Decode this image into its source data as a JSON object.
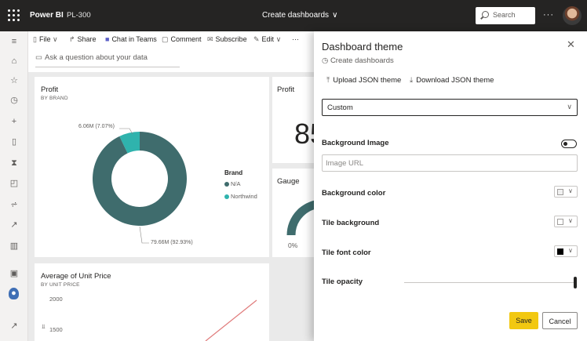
{
  "topbar": {
    "app": "Power BI",
    "workspace": "PL-300",
    "title": "Create dashboards",
    "search_placeholder": "Search",
    "more": "···"
  },
  "nav": {
    "items": [
      "menu-icon",
      "home-icon",
      "star-icon",
      "clock-icon",
      "plus-icon",
      "database-icon",
      "trophy-icon",
      "apps-icon",
      "share-icon",
      "rocket-icon",
      "book-icon",
      "monitor-icon",
      "workspace-icon",
      "expand-icon"
    ]
  },
  "toolbar": {
    "file": "File",
    "share": "Share",
    "chat": "Chat in Teams",
    "comment": "Comment",
    "subscribe": "Subscribe",
    "edit": "Edit",
    "more": "···"
  },
  "qa": {
    "placeholder": "Ask a question about your data"
  },
  "tiles": {
    "profit_donut": {
      "title": "Profit",
      "subtitle": "BY BRAND",
      "legend_title": "Brand",
      "legend": [
        {
          "name": "N/A",
          "color": "#3f6c6d"
        },
        {
          "name": "Northwind",
          "color": "#2fb3ad"
        }
      ],
      "label_small": "6.06M (7.07%)",
      "label_large": "79.66M (92.93%)"
    },
    "profit_card": {
      "title": "Profit",
      "value": "85"
    },
    "gauge": {
      "title": "Gauge",
      "min_label": "0%"
    },
    "unit_price": {
      "title": "Average of Unit Price",
      "subtitle": "BY UNIT PRICE",
      "tick_2000": "2000",
      "tick_1500": "1500"
    }
  },
  "chart_data": {
    "type": "pie",
    "categories": [
      "N/A",
      "Northwind"
    ],
    "values": [
      79.66,
      6.06
    ],
    "percentages": [
      92.93,
      7.07
    ],
    "title": "Profit",
    "subtitle": "BY BRAND",
    "legend_title": "Brand"
  },
  "panel": {
    "title": "Dashboard theme",
    "subtitle": "Create dashboards",
    "upload": "Upload JSON theme",
    "download": "Download JSON theme",
    "theme_select": "Custom",
    "background_image_label": "Background Image",
    "image_url_placeholder": "Image URL",
    "background_color_label": "Background color",
    "tile_background_label": "Tile background",
    "tile_font_color_label": "Tile font color",
    "tile_opacity_label": "Tile opacity",
    "save": "Save",
    "cancel": "Cancel",
    "colors": {
      "background_color": "#f0f0f0",
      "tile_background": "#ffffff",
      "tile_font_color": "#000000"
    }
  }
}
